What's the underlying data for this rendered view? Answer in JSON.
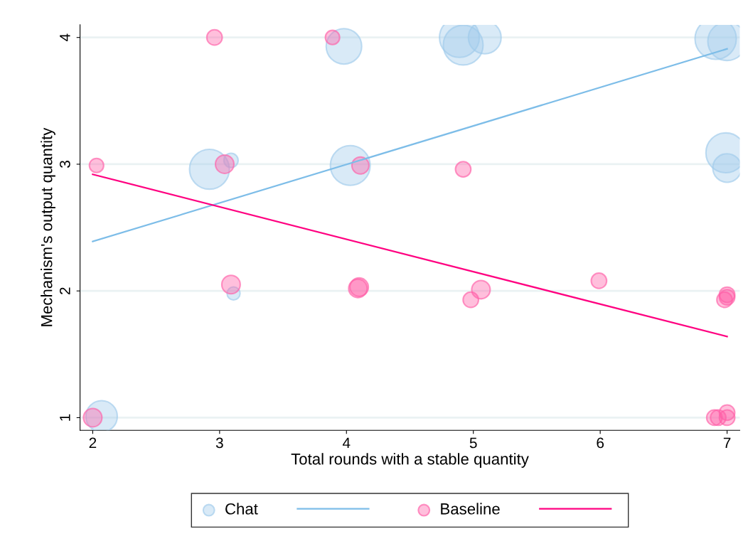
{
  "chart_data": {
    "type": "bubble",
    "xlabel": "Total rounds with a stable quantity",
    "ylabel": "Mechanism's output quantity",
    "xlim": [
      1.9,
      7.1
    ],
    "ylim": [
      0.9,
      4.1
    ],
    "xticks": [
      2,
      3,
      4,
      5,
      6,
      7
    ],
    "yticks": [
      1,
      2,
      3,
      4
    ],
    "grid": "y",
    "legend": "bottom",
    "series": [
      {
        "name": "Chat",
        "type": "bubble",
        "marker": "circle",
        "color": "#9fcbeb",
        "x": [
          2.07,
          2.92,
          3.09,
          3.11,
          3.98,
          4.03,
          4.89,
          4.92,
          5.09,
          6.91,
          7.0,
          6.99,
          7.0
        ],
        "values": [
          1.01,
          2.96,
          3.03,
          1.98,
          3.93,
          2.99,
          4.0,
          3.94,
          4.0,
          3.99,
          3.97,
          3.09,
          2.97
        ],
        "sizes": [
          0.58,
          0.93,
          0.12,
          0.1,
          0.74,
          0.93,
          0.93,
          0.93,
          0.63,
          1,
          0.87,
          0.93,
          0.48
        ]
      },
      {
        "type": "line",
        "color": "#7dbde8",
        "x": [
          2,
          7
        ],
        "values": [
          2.39,
          3.91
        ]
      },
      {
        "name": "Baseline",
        "type": "bubble",
        "marker": "circle",
        "color": "#ff5fa8",
        "x": [
          2.96,
          3.89,
          2.03,
          3.04,
          4.11,
          4.92,
          2.0,
          3.09,
          4.09,
          4.1,
          5.06,
          4.98,
          5.99,
          7.0,
          6.98,
          7.0,
          6.9,
          7.0,
          7.0,
          6.93
        ],
        "values": [
          4.0,
          4.0,
          2.99,
          3.0,
          2.99,
          2.96,
          1.0,
          2.05,
          2.02,
          2.03,
          2.01,
          1.93,
          2.08,
          1.97,
          1.93,
          1.95,
          1.0,
          1.04,
          1.0,
          1.0
        ],
        "sizes": [
          0.14,
          0.12,
          0.12,
          0.2,
          0.17,
          0.14,
          0.2,
          0.2,
          0.2,
          0.2,
          0.2,
          0.14,
          0.14,
          0.14,
          0.14,
          0.14,
          0.14,
          0.14,
          0.14,
          0.14
        ]
      },
      {
        "type": "line",
        "color": "#ff0080",
        "x": [
          2,
          7
        ],
        "values": [
          2.92,
          1.64
        ]
      }
    ]
  }
}
